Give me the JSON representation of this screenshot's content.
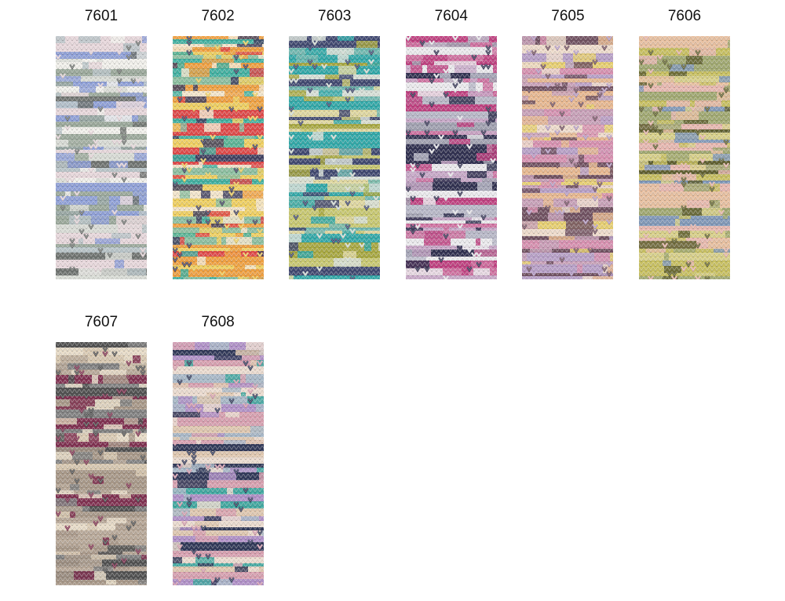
{
  "swatches": [
    {
      "label": "7601"
    },
    {
      "label": "7602"
    },
    {
      "label": "7603"
    },
    {
      "label": "7604"
    },
    {
      "label": "7605"
    },
    {
      "label": "7606"
    },
    {
      "label": "7607"
    },
    {
      "label": "7608"
    }
  ]
}
